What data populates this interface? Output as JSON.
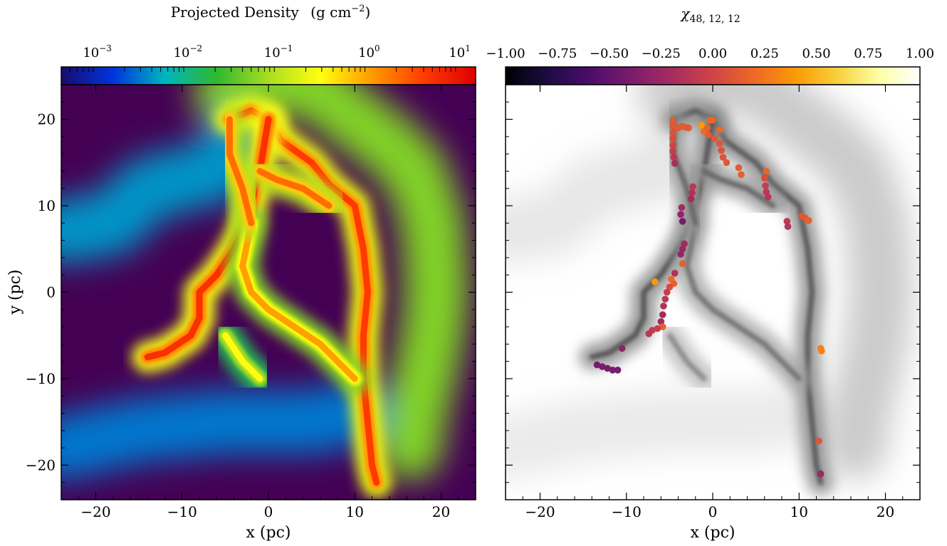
{
  "chart_data": [
    {
      "type": "heatmap",
      "title": "",
      "colorbar": {
        "label": "Projected Density",
        "label_unit": "(g cm",
        "label_exp": "−2",
        "label_close": ")",
        "scale": "log",
        "colormap": [
          "#1a0a6e",
          "#0033dd",
          "#00b4c0",
          "#2fb82f",
          "#aadd22",
          "#ffff10",
          "#ff9a00",
          "#ff3a00",
          "#dd0000"
        ],
        "range": [
          0.0004,
          15
        ],
        "ticks": [
          {
            "value": 0.001,
            "base": "10",
            "exp": "−3"
          },
          {
            "value": 0.01,
            "base": "10",
            "exp": "−2"
          },
          {
            "value": 0.1,
            "base": "10",
            "exp": "−1"
          },
          {
            "value": 1,
            "base": "10",
            "exp": "0"
          },
          {
            "value": 10,
            "base": "10",
            "exp": "1"
          }
        ]
      },
      "xlabel": "x (pc)",
      "ylabel": "y (pc)",
      "xlim": [
        -24,
        24
      ],
      "ylim": [
        -24,
        24
      ],
      "xticks": [
        -20,
        -10,
        0,
        10,
        20
      ],
      "yticks": [
        20,
        10,
        0,
        -10,
        -20
      ],
      "xtick_labels": [
        "−20",
        "−10",
        "0",
        "10",
        "20"
      ],
      "ytick_labels": [
        "20",
        "10",
        "0",
        "−10",
        "−20"
      ],
      "background_color": "#440154",
      "filaments": [
        {
          "path": [
            [
              -4.5,
              20
            ],
            [
              -2,
              21
            ],
            [
              0,
              20
            ],
            [
              1.5,
              17.5
            ],
            [
              5,
              15
            ],
            [
              7,
              12.5
            ],
            [
              10,
              10
            ],
            [
              11,
              5
            ],
            [
              11.5,
              0
            ],
            [
              11,
              -5
            ],
            [
              11,
              -10
            ],
            [
              11.5,
              -15
            ],
            [
              12,
              -20
            ],
            [
              12.5,
              -22
            ]
          ],
          "density": 4
        },
        {
          "path": [
            [
              0,
              20
            ],
            [
              -1,
              14
            ],
            [
              -2,
              10
            ],
            [
              -3,
              7
            ],
            [
              -4,
              5
            ],
            [
              -6,
              2
            ],
            [
              -8,
              0
            ],
            [
              -8,
              -3
            ],
            [
              -9,
              -5
            ],
            [
              -12,
              -7
            ],
            [
              -14,
              -7.5
            ]
          ],
          "density": 5
        },
        {
          "path": [
            [
              -1,
              14
            ],
            [
              1,
              13
            ],
            [
              4,
              12
            ],
            [
              7,
              10
            ]
          ],
          "density": 2
        },
        {
          "path": [
            [
              -2,
              8
            ],
            [
              -3,
              3
            ],
            [
              -2,
              0
            ],
            [
              0,
              -2
            ],
            [
              3,
              -4
            ],
            [
              6,
              -6
            ],
            [
              8,
              -8
            ],
            [
              10,
              -10
            ]
          ],
          "density": 1
        },
        {
          "path": [
            [
              -4.5,
              20
            ],
            [
              -4.5,
              16
            ],
            [
              -3,
              12
            ],
            [
              -2,
              8
            ]
          ],
          "density": 2
        },
        {
          "path": [
            [
              -5,
              -5
            ],
            [
              -3,
              -8
            ],
            [
              -1,
              -10
            ]
          ],
          "density": 0.3
        }
      ],
      "envelope": [
        {
          "path": [
            [
              -5,
              23
            ],
            [
              -2,
              24
            ],
            [
              5,
              24
            ],
            [
              10,
              20
            ],
            [
              14,
              17
            ],
            [
              17,
              14
            ],
            [
              19,
              8
            ],
            [
              19.5,
              0
            ],
            [
              19,
              -5
            ],
            [
              18,
              -10
            ],
            [
              17,
              -14
            ],
            [
              16.5,
              -18
            ]
          ],
          "density": 0.05
        },
        {
          "path": [
            [
              -24,
              7
            ],
            [
              -18,
              8
            ],
            [
              -14,
              12
            ],
            [
              -10,
              13
            ],
            [
              -6,
              14
            ],
            [
              -4,
              17
            ]
          ],
          "density": 0.004
        },
        {
          "path": [
            [
              -24,
              -18
            ],
            [
              -15,
              -16
            ],
            [
              -5,
              -15
            ],
            [
              5,
              -15
            ],
            [
              10,
              -14
            ]
          ],
          "density": 0.003
        }
      ]
    },
    {
      "type": "scatter",
      "title": "",
      "colorbar": {
        "label_symbol": "χ",
        "label_sub": "48, 12, 12",
        "range": [
          -1.0,
          1.0
        ],
        "colormap": [
          "#000004",
          "#1b0c42",
          "#4b0c6b",
          "#781c6d",
          "#a52c60",
          "#cf4446",
          "#ed6925",
          "#fb9a06",
          "#f7d03c",
          "#fcffa4",
          "#ffffff"
        ],
        "ticks": [
          -1.0,
          -0.75,
          -0.5,
          -0.25,
          0.0,
          0.25,
          0.5,
          0.75,
          1.0
        ],
        "tick_labels": [
          "−1.00",
          "−0.75",
          "−0.50",
          "−0.25",
          "0.00",
          "0.25",
          "0.50",
          "0.75",
          "1.00"
        ]
      },
      "background": "projected density in greyscale",
      "xlabel": "x (pc)",
      "ylabel": "",
      "xlim": [
        -24,
        24
      ],
      "ylim": [
        -24,
        24
      ],
      "xticks": [
        -20,
        -10,
        0,
        10,
        20
      ],
      "yticks": [
        20,
        10,
        0,
        -10,
        -20
      ],
      "xtick_labels": [
        "−20",
        "−10",
        "0",
        "10",
        "20"
      ],
      "points": [
        {
          "x": -4.6,
          "y": 19.8,
          "c": 0.12
        },
        {
          "x": -4.6,
          "y": 19.2,
          "c": 0.1
        },
        {
          "x": -4.6,
          "y": 18.5,
          "c": 0.08
        },
        {
          "x": -4.6,
          "y": 17.8,
          "c": 0.05
        },
        {
          "x": -4.6,
          "y": 17.0,
          "c": 0.0
        },
        {
          "x": -4.6,
          "y": 16.3,
          "c": -0.05
        },
        {
          "x": -4.5,
          "y": 15.6,
          "c": -0.1
        },
        {
          "x": -4.4,
          "y": 14.9,
          "c": -0.18
        },
        {
          "x": -4.0,
          "y": 19.0,
          "c": 0.12
        },
        {
          "x": -3.6,
          "y": 19.2,
          "c": 0.12
        },
        {
          "x": -3.2,
          "y": 19.1,
          "c": 0.12
        },
        {
          "x": -2.8,
          "y": 19.0,
          "c": 0.12
        },
        {
          "x": -1.3,
          "y": 19.3,
          "c": 0.4
        },
        {
          "x": -1.0,
          "y": 18.6,
          "c": 0.2
        },
        {
          "x": -0.6,
          "y": 19.0,
          "c": 0.15
        },
        {
          "x": -0.3,
          "y": 19.9,
          "c": 0.18
        },
        {
          "x": 0.0,
          "y": 19.9,
          "c": 0.18
        },
        {
          "x": -0.5,
          "y": 18.2,
          "c": 0.12
        },
        {
          "x": 0.2,
          "y": 17.8,
          "c": 0.1
        },
        {
          "x": 0.8,
          "y": 18.8,
          "c": 0.2
        },
        {
          "x": 0.8,
          "y": 17.2,
          "c": 0.1
        },
        {
          "x": 1.0,
          "y": 16.4,
          "c": 0.08
        },
        {
          "x": 1.2,
          "y": 15.6,
          "c": 0.08
        },
        {
          "x": 1.6,
          "y": 15.0,
          "c": 0.1
        },
        {
          "x": 3.0,
          "y": 14.4,
          "c": 0.12
        },
        {
          "x": 3.3,
          "y": 13.6,
          "c": 0.15
        },
        {
          "x": 6.2,
          "y": 14.0,
          "c": 0.18
        },
        {
          "x": 6.0,
          "y": 13.2,
          "c": 0.05
        },
        {
          "x": 6.1,
          "y": 12.3,
          "c": -0.05
        },
        {
          "x": 6.2,
          "y": 11.6,
          "c": -0.1
        },
        {
          "x": 6.4,
          "y": 11.0,
          "c": -0.12
        },
        {
          "x": 8.6,
          "y": 8.2,
          "c": -0.1
        },
        {
          "x": 8.7,
          "y": 7.6,
          "c": -0.12
        },
        {
          "x": 10.3,
          "y": 8.8,
          "c": 0.1
        },
        {
          "x": 10.7,
          "y": 8.6,
          "c": 0.1
        },
        {
          "x": 11.1,
          "y": 8.3,
          "c": 0.15
        },
        {
          "x": -2.3,
          "y": 12.2,
          "c": -0.1
        },
        {
          "x": -2.4,
          "y": 11.5,
          "c": -0.15
        },
        {
          "x": -2.5,
          "y": 10.8,
          "c": -0.2
        },
        {
          "x": -3.6,
          "y": 9.8,
          "c": -0.22
        },
        {
          "x": -3.7,
          "y": 9.0,
          "c": -0.3
        },
        {
          "x": -3.5,
          "y": 8.2,
          "c": -0.42
        },
        {
          "x": -3.3,
          "y": 5.6,
          "c": -0.22
        },
        {
          "x": -3.5,
          "y": 5.0,
          "c": -0.25
        },
        {
          "x": -3.7,
          "y": 4.4,
          "c": -0.28
        },
        {
          "x": -3.5,
          "y": 3.3,
          "c": 0.15
        },
        {
          "x": -4.4,
          "y": 2.2,
          "c": -0.15
        },
        {
          "x": -6.7,
          "y": 1.2,
          "c": 0.4
        },
        {
          "x": -4.8,
          "y": 1.5,
          "c": 0.2
        },
        {
          "x": -4.5,
          "y": 1.0,
          "c": 0.15
        },
        {
          "x": -5.0,
          "y": 0.6,
          "c": 0.05
        },
        {
          "x": -5.3,
          "y": 0.0,
          "c": -0.05
        },
        {
          "x": -5.5,
          "y": -0.8,
          "c": -0.1
        },
        {
          "x": -5.7,
          "y": -1.6,
          "c": -0.15
        },
        {
          "x": -5.8,
          "y": -2.6,
          "c": -0.2
        },
        {
          "x": -6.0,
          "y": -3.4,
          "c": -0.2
        },
        {
          "x": -5.8,
          "y": -4.0,
          "c": 0.15
        },
        {
          "x": -6.4,
          "y": -4.2,
          "c": -0.05
        },
        {
          "x": -7.0,
          "y": -4.4,
          "c": -0.05
        },
        {
          "x": -7.4,
          "y": -4.8,
          "c": -0.1
        },
        {
          "x": -10.5,
          "y": -6.5,
          "c": -0.3
        },
        {
          "x": -13.4,
          "y": -8.4,
          "c": -0.4
        },
        {
          "x": -12.8,
          "y": -8.6,
          "c": -0.4
        },
        {
          "x": -12.2,
          "y": -8.8,
          "c": -0.4
        },
        {
          "x": -11.6,
          "y": -9.0,
          "c": -0.4
        },
        {
          "x": -11.0,
          "y": -9.0,
          "c": -0.4
        },
        {
          "x": 12.5,
          "y": -6.5,
          "c": 0.3
        },
        {
          "x": 12.6,
          "y": -6.8,
          "c": 0.3
        },
        {
          "x": 12.3,
          "y": -17.2,
          "c": 0.1
        },
        {
          "x": 12.5,
          "y": -21.0,
          "c": -0.25
        }
      ]
    }
  ]
}
